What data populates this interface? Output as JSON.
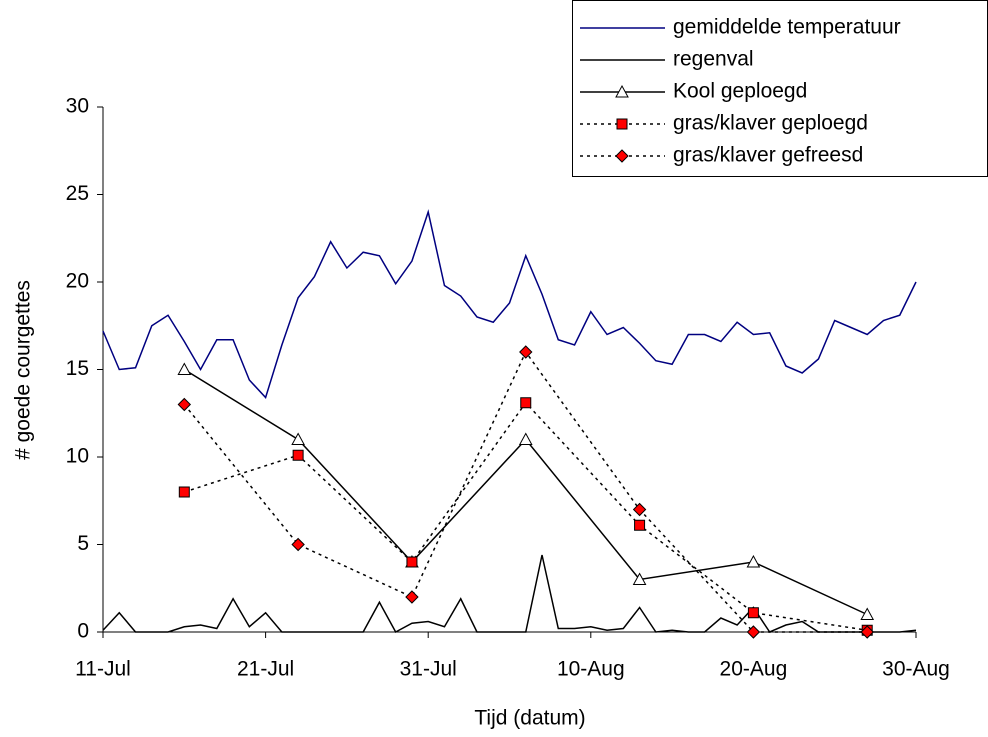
{
  "chart_data": {
    "type": "line",
    "x_label": "Tijd (datum)",
    "y_label": "# goede courgettes",
    "xlim": [
      0,
      50
    ],
    "ylim": [
      0,
      30
    ],
    "xticks": [
      {
        "value": 0,
        "label": "11-Jul"
      },
      {
        "value": 10,
        "label": "21-Jul"
      },
      {
        "value": 20,
        "label": "31-Jul"
      },
      {
        "value": 30,
        "label": "10-Aug"
      },
      {
        "value": 40,
        "label": "20-Aug"
      },
      {
        "value": 50,
        "label": "30-Aug"
      }
    ],
    "yticks": [
      0,
      5,
      10,
      15,
      20,
      25,
      30
    ],
    "legend": "top-right",
    "series": [
      {
        "name": "gemiddelde temperatuur",
        "color": "#000080",
        "dash": "none",
        "marker": "none",
        "x": [
          0,
          1,
          2,
          3,
          4,
          5,
          6,
          7,
          8,
          9,
          10,
          11,
          12,
          13,
          14,
          15,
          16,
          17,
          18,
          19,
          20,
          21,
          22,
          23,
          24,
          25,
          26,
          27,
          28,
          29,
          30,
          31,
          32,
          33,
          34,
          35,
          36,
          37,
          38,
          39,
          40,
          41,
          42,
          43,
          44,
          45,
          46,
          47,
          48,
          49,
          50
        ],
        "values": [
          17.2,
          15,
          15.1,
          17.5,
          18.1,
          16.6,
          15,
          16.7,
          16.7,
          14.4,
          13.4,
          16.4,
          19.1,
          20.3,
          22.3,
          20.8,
          21.7,
          21.5,
          19.9,
          21.2,
          24,
          19.8,
          19.2,
          18,
          17.7,
          18.8,
          21.5,
          19.3,
          16.7,
          16.4,
          18.3,
          17,
          17.4,
          16.5,
          15.5,
          15.3,
          17,
          17,
          16.6,
          17.7,
          17,
          17.1,
          15.2,
          14.8,
          15.6,
          17.8,
          17.4,
          17,
          17.8,
          18.1,
          20
        ]
      },
      {
        "name": "regenval",
        "color": "#000000",
        "dash": "none",
        "marker": "none",
        "x": [
          0,
          1,
          2,
          3,
          4,
          5,
          6,
          7,
          8,
          9,
          10,
          11,
          12,
          13,
          14,
          15,
          16,
          17,
          18,
          19,
          20,
          21,
          22,
          23,
          24,
          25,
          26,
          27,
          28,
          29,
          30,
          31,
          32,
          33,
          34,
          35,
          36,
          37,
          38,
          39,
          40,
          41,
          42,
          43,
          44,
          45,
          46,
          47,
          48,
          49,
          50
        ],
        "values": [
          0.1,
          1.1,
          0,
          0,
          0,
          0.3,
          0.4,
          0.2,
          1.9,
          0.3,
          1.1,
          0,
          0,
          0,
          0,
          0,
          0,
          1.7,
          0,
          0.5,
          0.6,
          0.3,
          1.9,
          0,
          0,
          0,
          0,
          4.4,
          0.2,
          0.2,
          0.3,
          0.1,
          0.2,
          1.4,
          0,
          0.1,
          0,
          0,
          0.8,
          0.4,
          1.4,
          0,
          0.4,
          0.6,
          0,
          0,
          0,
          0,
          0,
          0,
          0.1
        ]
      },
      {
        "name": "Kool geploegd",
        "color": "#000000",
        "dash": "none",
        "marker": "triangle",
        "x": [
          5,
          12,
          19,
          26,
          33,
          40,
          47
        ],
        "values": [
          15,
          11,
          4,
          11,
          3,
          4,
          1
        ]
      },
      {
        "name": "gras/klaver geploegd",
        "color": "#000000",
        "marker_color": "#ff0000",
        "dash": "3,4",
        "marker": "square",
        "x": [
          5,
          12,
          19,
          26,
          33,
          40,
          47
        ],
        "values": [
          8,
          10.1,
          4,
          13.1,
          6.1,
          1.1,
          0.1
        ]
      },
      {
        "name": "gras/klaver gefreesd",
        "color": "#000000",
        "marker_color": "#ff0000",
        "dash": "3,4",
        "marker": "diamond",
        "x": [
          5,
          12,
          19,
          26,
          33,
          40,
          47
        ],
        "values": [
          13,
          5,
          2,
          16,
          7,
          0,
          0
        ]
      }
    ]
  }
}
